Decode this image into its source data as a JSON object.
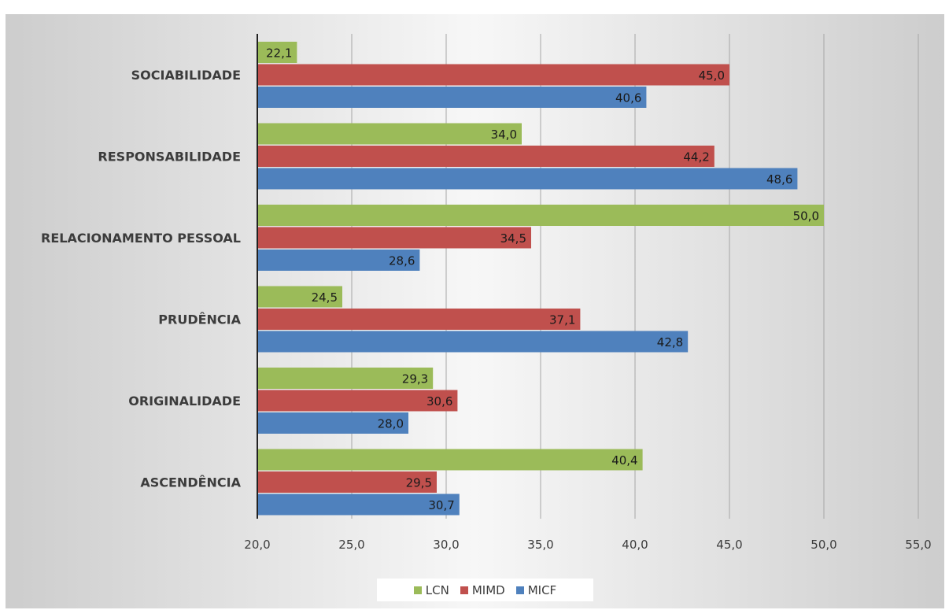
{
  "chart_data": {
    "type": "bar",
    "orientation": "horizontal",
    "categories": [
      "SOCIABILIDADE",
      "RESPONSABILIDADE",
      "RELACIONAMENTO  PESSOAL",
      "PRUDÊNCIA",
      "ORIGINALIDADE",
      "ASCENDÊNCIA"
    ],
    "series": [
      {
        "name": "LCN",
        "color": "#9bbb59",
        "values": [
          22.1,
          34.0,
          50.0,
          24.5,
          29.3,
          40.4
        ],
        "labels": [
          "22,1",
          "34,0",
          "50,0",
          "24,5",
          "29,3",
          "40,4"
        ]
      },
      {
        "name": "MIMD",
        "color": "#c0504d",
        "values": [
          45.0,
          44.2,
          34.5,
          37.1,
          30.6,
          29.5
        ],
        "labels": [
          "45,0",
          "44,2",
          "34,5",
          "37,1",
          "30,6",
          "29,5"
        ]
      },
      {
        "name": "MICF",
        "color": "#4f81bd",
        "values": [
          40.6,
          48.6,
          28.6,
          42.8,
          28.0,
          30.7
        ],
        "labels": [
          "40,6",
          "48,6",
          "28,6",
          "42,8",
          "28,0",
          "30,7"
        ]
      }
    ],
    "xlim": [
      20,
      55
    ],
    "xticks": [
      20,
      25,
      30,
      35,
      40,
      45,
      50,
      55
    ],
    "xtick_labels": [
      "20,0",
      "25,0",
      "30,0",
      "35,0",
      "40,0",
      "45,0",
      "50,0",
      "55,0"
    ],
    "grid": true,
    "legend_position": "bottom"
  }
}
